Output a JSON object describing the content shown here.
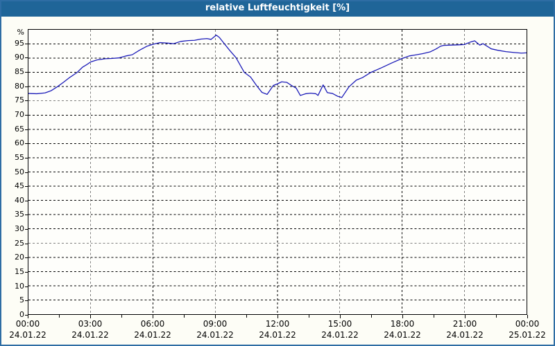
{
  "window": {
    "title": "relative Luftfeuchtigkeit [%]"
  },
  "colors": {
    "titlebar_bg": "#1f6598",
    "title_text": "#ffffff",
    "frame_border": "#2e6da4",
    "page_bg": "#fdfdf6",
    "plot_bg": "#fefefb",
    "plot_border": "#000000",
    "grid": "#000000",
    "line": "#1a1ab8",
    "text": "#000000"
  },
  "chart_data": {
    "type": "line",
    "title": "relative Luftfeuchtigkeit [%]",
    "ylabel": "%",
    "unit_label": "%",
    "ylim": [
      0,
      100
    ],
    "xlim_hours": [
      0,
      24
    ],
    "grid": "dashed",
    "legend_position": "none",
    "y_ticks": [
      0,
      5,
      10,
      15,
      20,
      25,
      30,
      35,
      40,
      45,
      50,
      55,
      60,
      65,
      70,
      75,
      80,
      85,
      90,
      95
    ],
    "x_major_ticks": [
      {
        "hour": 0,
        "time": "00:00",
        "date": "24.01.22"
      },
      {
        "hour": 3,
        "time": "03:00",
        "date": "24.01.22"
      },
      {
        "hour": 6,
        "time": "06:00",
        "date": "24.01.22"
      },
      {
        "hour": 9,
        "time": "09:00",
        "date": "24.01.22"
      },
      {
        "hour": 12,
        "time": "12:00",
        "date": "24.01.22"
      },
      {
        "hour": 15,
        "time": "15:00",
        "date": "24.01.22"
      },
      {
        "hour": 18,
        "time": "18:00",
        "date": "24.01.22"
      },
      {
        "hour": 21,
        "time": "21:00",
        "date": "24.01.22"
      },
      {
        "hour": 24,
        "time": "00:00",
        "date": "25.01.22"
      }
    ],
    "x_minor_tick_hours": [
      1.5,
      4.5,
      7.5,
      10.5,
      13.5,
      16.5,
      19.5,
      22.5
    ],
    "series": [
      {
        "name": "relative Luftfeuchtigkeit",
        "color": "#1a1ab8",
        "points": [
          [
            0.0,
            77.6
          ],
          [
            0.4,
            77.5
          ],
          [
            0.8,
            77.8
          ],
          [
            1.1,
            78.6
          ],
          [
            1.4,
            80.0
          ],
          [
            1.7,
            81.6
          ],
          [
            2.0,
            83.3
          ],
          [
            2.35,
            85.0
          ],
          [
            2.6,
            86.8
          ],
          [
            2.8,
            87.7
          ],
          [
            3.0,
            88.7
          ],
          [
            3.3,
            89.4
          ],
          [
            3.7,
            89.8
          ],
          [
            4.0,
            89.9
          ],
          [
            4.35,
            90.1
          ],
          [
            4.7,
            90.8
          ],
          [
            5.0,
            91.2
          ],
          [
            5.35,
            92.8
          ],
          [
            5.7,
            94.2
          ],
          [
            6.0,
            94.9
          ],
          [
            6.35,
            95.5
          ],
          [
            6.7,
            95.3
          ],
          [
            7.0,
            95.1
          ],
          [
            7.35,
            95.9
          ],
          [
            7.7,
            96.2
          ],
          [
            8.0,
            96.3
          ],
          [
            8.3,
            96.7
          ],
          [
            8.6,
            96.9
          ],
          [
            8.8,
            96.6
          ],
          [
            9.05,
            98.1
          ],
          [
            9.2,
            97.3
          ],
          [
            9.45,
            95.0
          ],
          [
            9.7,
            92.7
          ],
          [
            10.0,
            90.2
          ],
          [
            10.4,
            85.0
          ],
          [
            10.7,
            83.4
          ],
          [
            11.0,
            80.3
          ],
          [
            11.25,
            78.0
          ],
          [
            11.5,
            77.3
          ],
          [
            11.8,
            80.4
          ],
          [
            12.0,
            81.0
          ],
          [
            12.2,
            81.7
          ],
          [
            12.45,
            81.5
          ],
          [
            12.7,
            80.3
          ],
          [
            12.9,
            79.5
          ],
          [
            13.1,
            76.9
          ],
          [
            13.35,
            77.5
          ],
          [
            13.6,
            77.7
          ],
          [
            13.85,
            77.5
          ],
          [
            13.95,
            76.9
          ],
          [
            14.2,
            80.6
          ],
          [
            14.4,
            77.9
          ],
          [
            14.65,
            77.6
          ],
          [
            14.9,
            76.6
          ],
          [
            15.1,
            76.2
          ],
          [
            15.45,
            80.0
          ],
          [
            15.8,
            82.3
          ],
          [
            16.1,
            83.2
          ],
          [
            16.5,
            85.0
          ],
          [
            17.0,
            86.6
          ],
          [
            17.5,
            88.3
          ],
          [
            18.0,
            89.9
          ],
          [
            18.35,
            90.8
          ],
          [
            18.7,
            91.2
          ],
          [
            19.0,
            91.6
          ],
          [
            19.35,
            92.2
          ],
          [
            19.65,
            93.3
          ],
          [
            19.85,
            94.2
          ],
          [
            20.0,
            94.5
          ],
          [
            20.35,
            94.6
          ],
          [
            20.7,
            94.7
          ],
          [
            21.0,
            94.8
          ],
          [
            21.3,
            95.7
          ],
          [
            21.5,
            96.1
          ],
          [
            21.75,
            94.6
          ],
          [
            21.9,
            95.1
          ],
          [
            22.3,
            93.3
          ],
          [
            22.6,
            92.8
          ],
          [
            23.0,
            92.3
          ],
          [
            23.4,
            92.0
          ],
          [
            23.75,
            91.8
          ],
          [
            24.0,
            91.9
          ]
        ]
      }
    ]
  }
}
